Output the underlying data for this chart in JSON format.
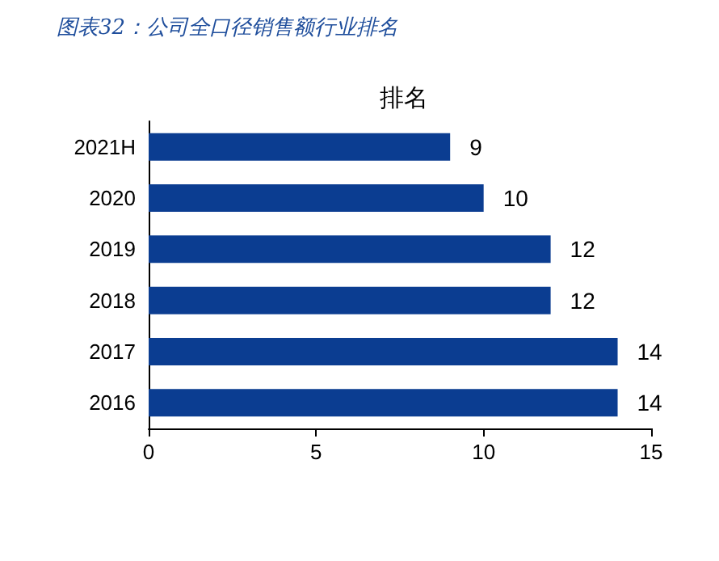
{
  "chart_data": {
    "type": "bar",
    "orientation": "horizontal",
    "title": "图表32：公司全口径销售额行业排名",
    "subtitle": "排名",
    "categories": [
      "2021H",
      "2020",
      "2019",
      "2018",
      "2017",
      "2016"
    ],
    "values": [
      9,
      10,
      12,
      12,
      14,
      14
    ],
    "color": "#0b3d91",
    "xlim": [
      0,
      15
    ],
    "xticks": [
      0,
      5,
      10,
      15
    ],
    "grid": false,
    "data_labels": true
  }
}
